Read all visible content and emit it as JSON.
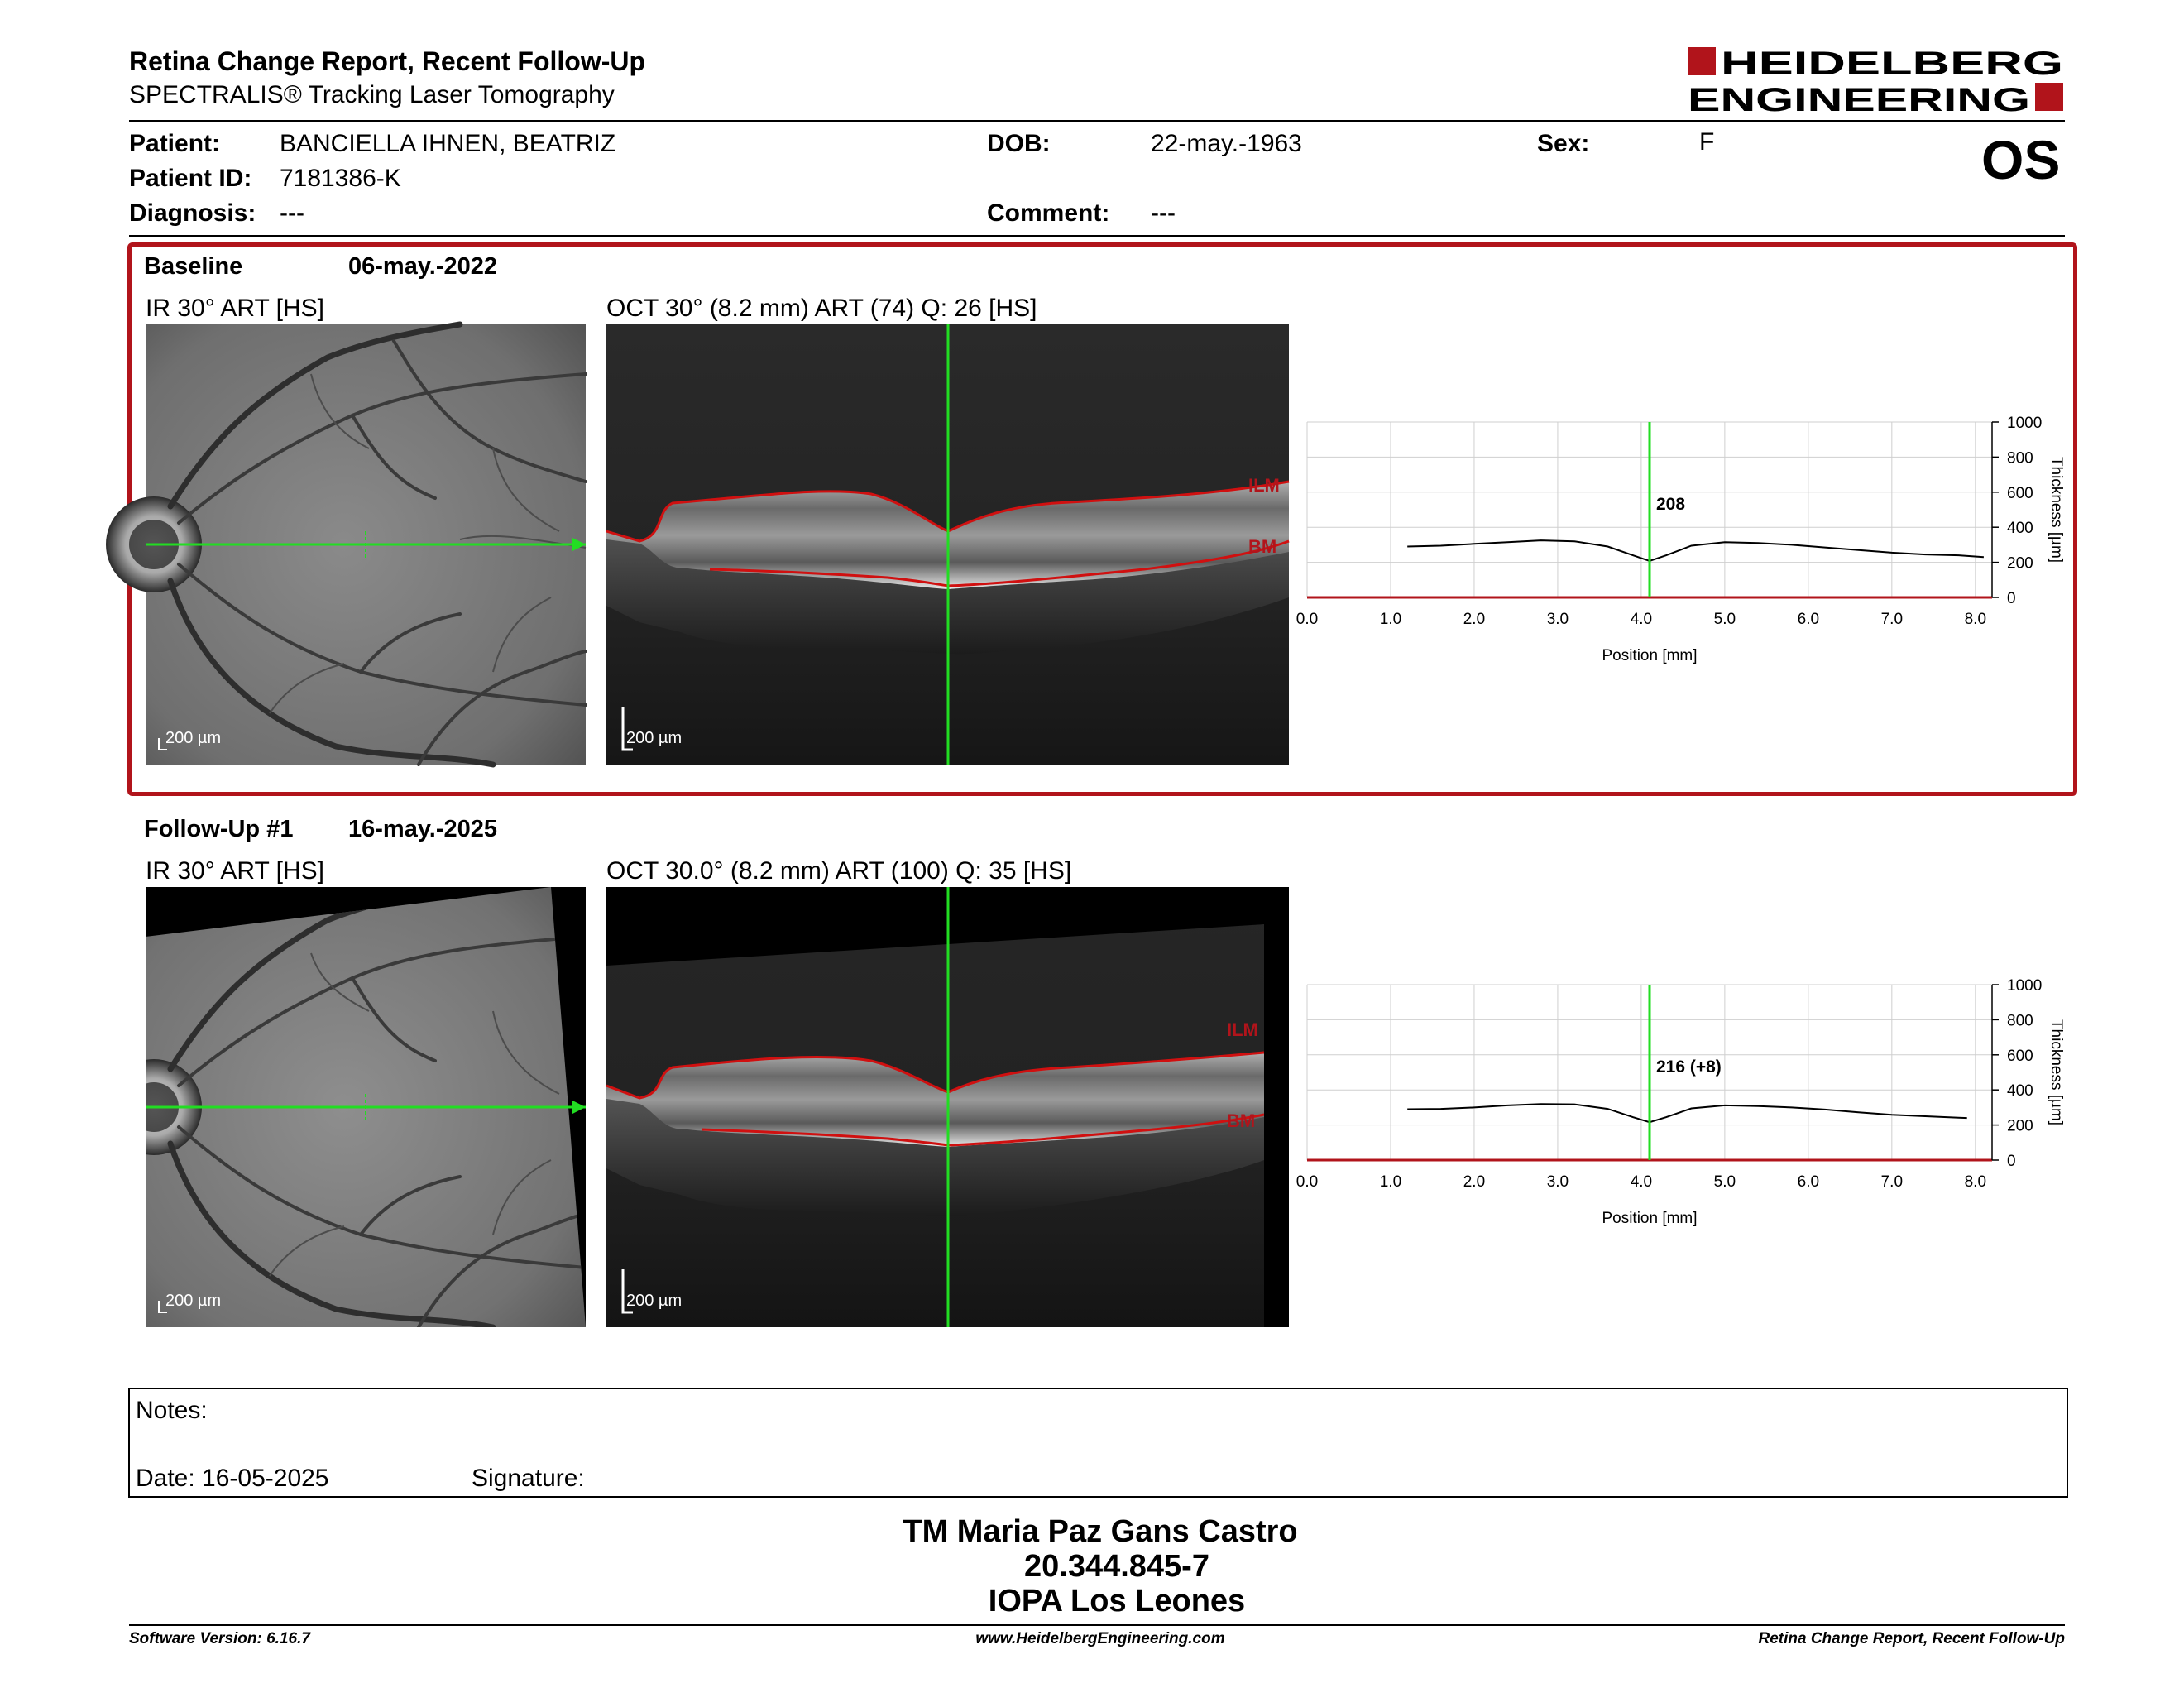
{
  "header": {
    "title": "Retina Change Report, Recent Follow-Up",
    "subtitle": "SPECTRALIS® Tracking Laser Tomography",
    "logo_line1": "HEIDELBERG",
    "logo_line2": "ENGINEERING",
    "eye": "OS"
  },
  "patient": {
    "patient_label": "Patient:",
    "patient_value": "BANCIELLA IHNEN, BEATRIZ",
    "id_label": "Patient ID:",
    "id_value": "7181386-K",
    "diagnosis_label": "Diagnosis:",
    "diagnosis_value": "---",
    "dob_label": "DOB:",
    "dob_value": "22-may.-1963",
    "comment_label": "Comment:",
    "comment_value": "---",
    "sex_label": "Sex:",
    "sex_value": "F"
  },
  "colors": {
    "accent": "#b1141b",
    "scan_line": "#22dd22",
    "layer_line": "#d01010"
  },
  "baseline": {
    "name": "Baseline",
    "date": "06-may.-2022",
    "ir_caption": "IR 30° ART [HS]",
    "oct_caption": "OCT 30° (8.2 mm) ART (74) Q: 26 [HS]",
    "scale": "200 µm",
    "ilm": "ILM",
    "bm": "BM",
    "chart_value": "208"
  },
  "followup": {
    "name": "Follow-Up #1",
    "date": "16-may.-2025",
    "ir_caption": "IR 30° ART [HS]",
    "oct_caption": "OCT 30.0° (8.2 mm) ART (100) Q: 35 [HS]",
    "scale": "200 µm",
    "ilm": "ILM",
    "bm": "BM",
    "chart_value": "216 (+8)"
  },
  "chart_axes": {
    "xlabel": "Position [mm]",
    "ylabel": "Thickness [µm]",
    "xticks": [
      "0.0",
      "1.0",
      "2.0",
      "3.0",
      "4.0",
      "5.0",
      "6.0",
      "7.0",
      "8.0"
    ],
    "yticks": [
      "0",
      "200",
      "400",
      "600",
      "800",
      "1000"
    ]
  },
  "chart_data": [
    {
      "type": "line",
      "xlabel": "Position [mm]",
      "ylabel": "Thickness [µm]",
      "xlim": [
        0,
        8.2
      ],
      "ylim": [
        0,
        1000
      ],
      "marker_x": 4.1,
      "marker_label": "208",
      "x": [
        1.2,
        1.6,
        2.0,
        2.4,
        2.8,
        3.2,
        3.6,
        3.9,
        4.1,
        4.3,
        4.6,
        5.0,
        5.4,
        5.8,
        6.2,
        6.6,
        7.0,
        7.4,
        7.8,
        8.1
      ],
      "y": [
        290,
        295,
        305,
        315,
        325,
        320,
        290,
        240,
        208,
        240,
        295,
        315,
        310,
        300,
        285,
        270,
        255,
        245,
        240,
        230
      ]
    },
    {
      "type": "line",
      "xlabel": "Position [mm]",
      "ylabel": "Thickness [µm]",
      "xlim": [
        0,
        8.2
      ],
      "ylim": [
        0,
        1000
      ],
      "marker_x": 4.1,
      "marker_label": "216 (+8)",
      "x": [
        1.2,
        1.6,
        2.0,
        2.4,
        2.8,
        3.2,
        3.6,
        3.9,
        4.1,
        4.3,
        4.6,
        5.0,
        5.4,
        5.8,
        6.2,
        6.6,
        7.0,
        7.4,
        7.8,
        7.9
      ],
      "y": [
        290,
        292,
        300,
        312,
        320,
        318,
        292,
        245,
        216,
        245,
        295,
        312,
        308,
        300,
        288,
        272,
        258,
        250,
        242,
        240
      ]
    }
  ],
  "notes": {
    "notes_label": "Notes:",
    "date_label": "Date: 16-05-2025",
    "signature_label": "Signature:"
  },
  "signature": {
    "name": "TM Maria Paz Gans Castro",
    "id": "20.344.845-7",
    "org": "IOPA Los Leones"
  },
  "footer": {
    "software": "Software Version: 6.16.7",
    "website": "www.HeidelbergEngineering.com",
    "report": "Retina Change Report, Recent Follow-Up"
  }
}
